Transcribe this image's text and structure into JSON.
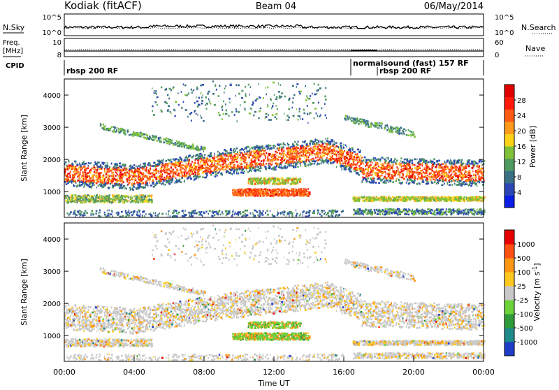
{
  "header": {
    "station": "Kodiak (fitACF)",
    "beam": "Beam 04",
    "date": "06/May/2014"
  },
  "top_panels": {
    "nsky_label": "N.Sky",
    "nsearch_label": "N.Search",
    "noise_ticks_left": [
      "10^5",
      "10^0"
    ],
    "noise_ticks_right": [
      "10^5",
      "10^0"
    ],
    "freq_label_line1": "Freq.",
    "freq_label_line2": "[MHz]",
    "freq_ticks_left": [
      "10",
      "8"
    ],
    "nave_label": "Nave",
    "nave_ticks_right": [
      "60",
      "0"
    ],
    "cpid_label": "CPID",
    "cpid_modes": [
      {
        "text": "rbsp 200 RF",
        "start": "00:00"
      },
      {
        "text": "normalsound (fast) 157 RF",
        "start": "16:40"
      },
      {
        "text": "rbsp 200 RF",
        "start": "17:50"
      }
    ]
  },
  "chart_data": [
    {
      "type": "heatmap",
      "name": "power-panel",
      "ylabel": "Slant Range [km]",
      "xlim": [
        "00:00",
        "24:00"
      ],
      "ylim": [
        200,
        4500
      ],
      "yticks": [
        1000,
        2000,
        3000,
        4000
      ],
      "colorbar": {
        "label": "Power [dB]",
        "ticks": [
          4,
          8,
          12,
          16,
          20,
          24,
          28
        ],
        "colors": [
          "#0a1ee6",
          "#2c47b5",
          "#3a6f86",
          "#4f9a5e",
          "#7fc23a",
          "#ffd21a",
          "#ff9a1a",
          "#ff5a14",
          "#ff1a0a",
          "#e00000"
        ]
      }
    },
    {
      "type": "heatmap",
      "name": "velocity-panel",
      "xlabel": "Time UT",
      "ylabel": "Slant Range [km]",
      "xlim": [
        "00:00",
        "24:00"
      ],
      "ylim": [
        200,
        4500
      ],
      "yticks": [
        1000,
        2000,
        3000,
        4000
      ],
      "xticks": [
        "00:00",
        "04:00",
        "08:00",
        "12:00",
        "16:00",
        "20:00",
        "00:00"
      ],
      "colorbar": {
        "label": "Velocity [m s",
        "label_sup": "-1",
        "label_end": "]",
        "ticks": [
          "1000",
          "500",
          "100",
          "25",
          "-25",
          "-100",
          "-500",
          "-1000"
        ],
        "colors": [
          "#1e3cc8",
          "#1f8a8a",
          "#2f9a3a",
          "#6cd23a",
          "#c8c8c8",
          "#ffc81e",
          "#ff9614",
          "#ff5014",
          "#e80000"
        ]
      }
    }
  ]
}
